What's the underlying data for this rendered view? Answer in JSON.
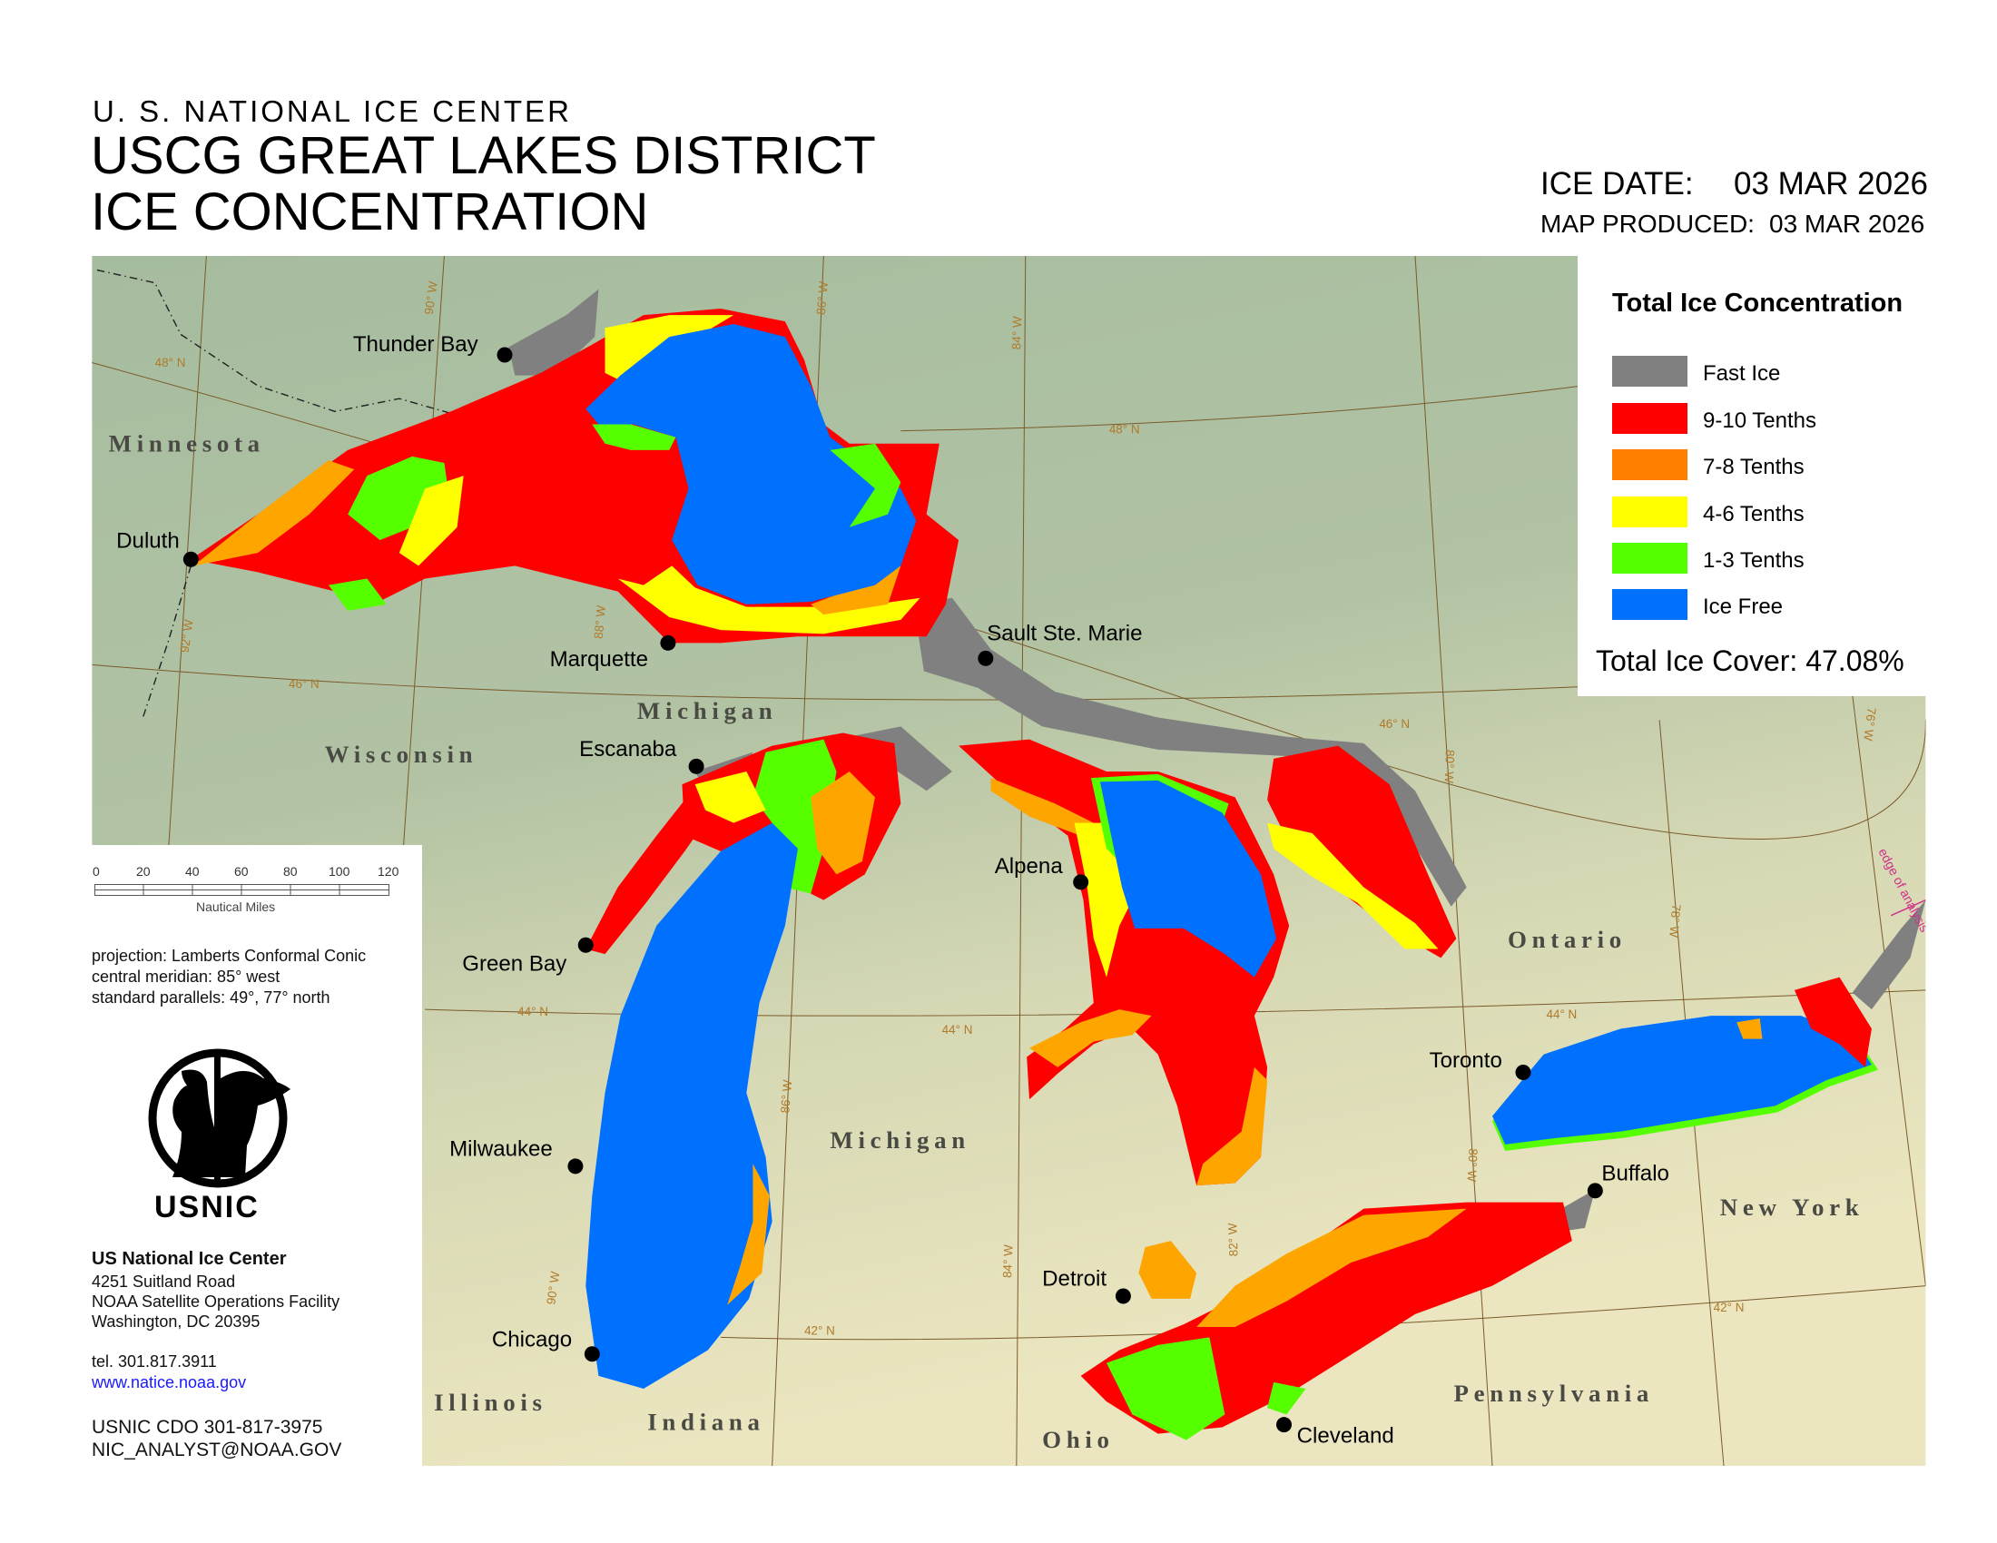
{
  "header": {
    "agency": "U. S. NATIONAL ICE CENTER",
    "title_line1": "USCG GREAT LAKES DISTRICT",
    "title_line2": "ICE CONCENTRATION",
    "ice_date_label": "ICE DATE:",
    "ice_date": "03 MAR 2026",
    "map_produced_label": "MAP PRODUCED:",
    "map_produced": "03 MAR 2026"
  },
  "legend": {
    "title": "Total Ice Concentration",
    "items": [
      {
        "label": "Fast Ice",
        "color": "#808080"
      },
      {
        "label": "9-10 Tenths",
        "color": "#ff0000"
      },
      {
        "label": "7-8 Tenths",
        "color": "#ff7f00"
      },
      {
        "label": "4-6 Tenths",
        "color": "#ffff00"
      },
      {
        "label": "1-3 Tenths",
        "color": "#55ff00"
      },
      {
        "label": "Ice Free",
        "color": "#0070ff"
      }
    ],
    "total_ice_cover": "Total Ice Cover: 47.08%"
  },
  "scale_bar": {
    "ticks": [
      "0",
      "20",
      "40",
      "60",
      "80",
      "100",
      "120"
    ],
    "unit": "Nautical Miles"
  },
  "projection": {
    "line1": "projection: Lamberts Conformal Conic",
    "line2": "central meridian: 85° west",
    "line3": "standard parallels: 49°, 77° north"
  },
  "logo": {
    "text": "USNIC"
  },
  "contact": {
    "org": "US National Ice Center",
    "address1": "4251 Suitland Road",
    "address2": "NOAA Satellite Operations Facility",
    "address3": "Washington, DC  20395",
    "tel": "tel. 301.817.3911",
    "web": "www.natice.noaa.gov",
    "cdo": "USNIC CDO 301-817-3975",
    "email": "NIC_ANALYST@NOAA.GOV"
  },
  "map": {
    "states": [
      "Minnesota",
      "Wisconsin",
      "Michigan",
      "Michigan",
      "Ontario",
      "New York",
      "Pennsylvania",
      "Ohio",
      "Illinois",
      "Indiana"
    ],
    "cities": [
      "Thunder Bay",
      "Duluth",
      "Marquette",
      "Sault Ste. Marie",
      "Escanaba",
      "Green Bay",
      "Alpena",
      "Milwaukee",
      "Chicago",
      "Toronto",
      "Buffalo",
      "Detroit",
      "Cleveland"
    ],
    "graticule_labels": [
      "48° N",
      "48° N",
      "46° N",
      "46° N",
      "44° N",
      "44° N",
      "44° N",
      "42° N",
      "42° N",
      "90° W",
      "86° W",
      "84° W",
      "88° W",
      "92° W",
      "80° W",
      "78° W",
      "76° W",
      "86° W",
      "84° W",
      "82° W",
      "80° W",
      "90° W"
    ],
    "edge_label": "edge of analysis"
  }
}
